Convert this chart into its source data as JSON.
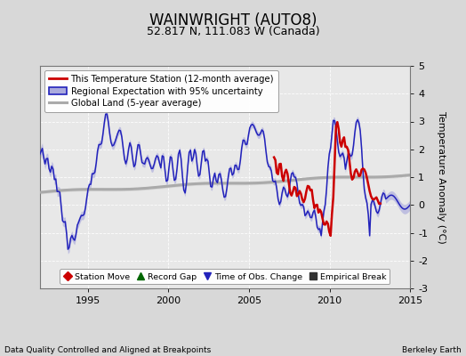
{
  "title": "WAINWRIGHT (AUTO8)",
  "subtitle": "52.817 N, 111.083 W (Canada)",
  "ylabel": "Temperature Anomaly (°C)",
  "xlabel_left": "Data Quality Controlled and Aligned at Breakpoints",
  "xlabel_right": "Berkeley Earth",
  "ylim": [
    -3,
    5
  ],
  "xlim": [
    1992.0,
    2015.0
  ],
  "yticks": [
    -3,
    -2,
    -1,
    0,
    1,
    2,
    3,
    4,
    5
  ],
  "xticks": [
    1995,
    2000,
    2005,
    2010,
    2015
  ],
  "bg_color": "#d8d8d8",
  "plot_bg_color": "#e8e8e8",
  "blue_line_color": "#2222bb",
  "blue_fill_color": "#aaaadd",
  "red_line_color": "#cc0000",
  "gray_line_color": "#aaaaaa",
  "gray_fill_color": "#cccccc",
  "title_fontsize": 12,
  "subtitle_fontsize": 9,
  "tick_fontsize": 8,
  "legend1_labels": [
    "This Temperature Station (12-month average)",
    "Regional Expectation with 95% uncertainty",
    "Global Land (5-year average)"
  ],
  "legend2_labels": [
    "Station Move",
    "Record Gap",
    "Time of Obs. Change",
    "Empirical Break"
  ],
  "legend2_markers": [
    "D",
    "^",
    "v",
    "s"
  ],
  "legend2_colors": [
    "#cc0000",
    "#006600",
    "#2222bb",
    "#333333"
  ]
}
